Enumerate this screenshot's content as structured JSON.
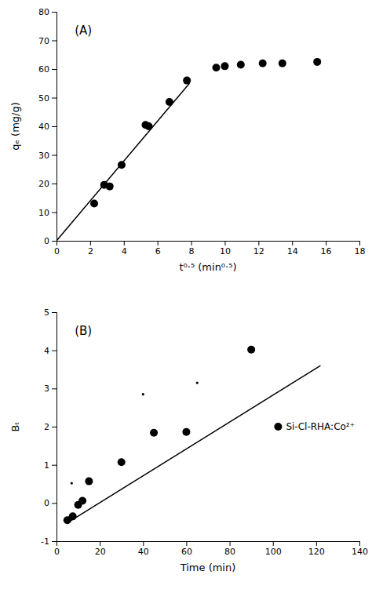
{
  "chart_data": [
    {
      "type": "scatter",
      "annotations": [
        "(A)"
      ],
      "x_label": "t⁰·⁵ (min⁰·⁵)",
      "y_label": "qₑ (mg/g)",
      "series": [
        {
          "type": "scatter",
          "marker": "circle",
          "color": "#000000",
          "x": [
            2.24,
            2.83,
            3.16,
            3.87,
            5.29,
            5.48,
            6.71,
            7.75,
            9.49,
            10.0,
            10.95,
            12.25,
            13.42,
            15.49
          ],
          "values": [
            13.0,
            19.5,
            19.0,
            26.5,
            40.5,
            40.0,
            48.5,
            56.0,
            60.5,
            61.0,
            61.5,
            62.0,
            62.0,
            62.5
          ]
        },
        {
          "type": "line",
          "line_style": "solid",
          "color": "#000000",
          "x": [
            0.0,
            7.9
          ],
          "values": [
            0.0,
            55.0
          ]
        }
      ],
      "xlim": [
        0,
        18
      ],
      "ylim": [
        0,
        80
      ],
      "xticks": [
        0,
        2,
        4,
        6,
        8,
        10,
        12,
        14,
        16,
        18
      ],
      "yticks": [
        0,
        10,
        20,
        30,
        40,
        50,
        60,
        70,
        80
      ],
      "grid": false
    },
    {
      "type": "scatter",
      "annotations": [
        "(B)"
      ],
      "x_label": "Time (min)",
      "y_label": "Bₜ",
      "series": [
        {
          "type": "scatter",
          "marker": "circle",
          "color": "#000000",
          "name": "Si-Cl-RHA:Co²⁺",
          "x": [
            5.0,
            7.5,
            10.0,
            12.0,
            15.0,
            30.0,
            45.0,
            60.0,
            90.0
          ],
          "values": [
            -0.45,
            -0.35,
            -0.05,
            0.06,
            0.57,
            1.07,
            1.84,
            1.86,
            4.02
          ]
        },
        {
          "type": "scatter",
          "marker": "point",
          "color": "#000000",
          "x": [
            7.0,
            40.0,
            65.0
          ],
          "values": [
            0.52,
            2.85,
            3.15
          ]
        },
        {
          "type": "line",
          "line_style": "solid",
          "color": "#000000",
          "x": [
            5.0,
            122.0
          ],
          "values": [
            -0.52,
            3.6
          ]
        }
      ],
      "xlim": [
        0,
        140
      ],
      "ylim": [
        -1,
        5
      ],
      "xticks": [
        0,
        20,
        40,
        60,
        80,
        100,
        120,
        140
      ],
      "yticks": [
        -1,
        0,
        1,
        2,
        3,
        4,
        5
      ],
      "legend": "right",
      "grid": false
    }
  ]
}
